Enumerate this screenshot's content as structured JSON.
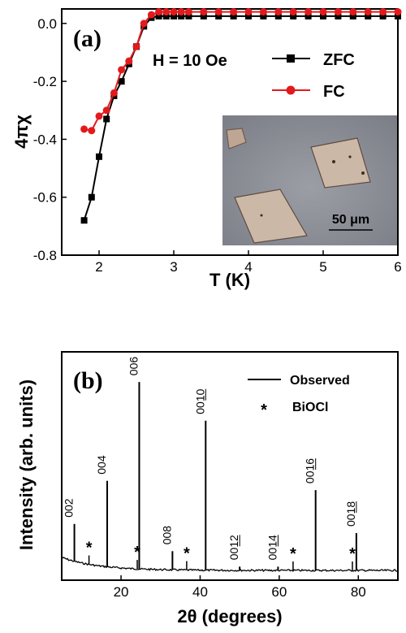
{
  "chart_data": [
    {
      "panel": "(a)",
      "type": "line",
      "xlabel": "T (K)",
      "ylabel": "4πχ",
      "xlim": [
        1.5,
        6
      ],
      "ylim": [
        -0.8,
        0.05
      ],
      "xticks": [
        "2",
        "3",
        "4",
        "5",
        "6"
      ],
      "yticks": [
        "0.0",
        "-0.2",
        "-0.4",
        "-0.6",
        "-0.8"
      ],
      "annotation": "H = 10 Oe",
      "inset_scale_label": "50 μm",
      "series": [
        {
          "name": "ZFC",
          "color": "#000000",
          "marker": "square",
          "x": [
            1.8,
            1.9,
            2.0,
            2.1,
            2.2,
            2.3,
            2.4,
            2.5,
            2.6,
            2.7,
            2.8,
            2.9,
            3.0,
            3.1,
            3.2,
            3.4,
            3.6,
            3.8,
            4.0,
            4.2,
            4.4,
            4.6,
            4.8,
            5.0,
            5.2,
            5.4,
            5.6,
            5.8,
            6.0
          ],
          "y": [
            -0.68,
            -0.6,
            -0.46,
            -0.33,
            -0.25,
            -0.2,
            -0.14,
            -0.08,
            -0.01,
            0.02,
            0.025,
            0.025,
            0.025,
            0.025,
            0.025,
            0.025,
            0.025,
            0.025,
            0.025,
            0.025,
            0.025,
            0.025,
            0.025,
            0.025,
            0.025,
            0.025,
            0.025,
            0.025,
            0.025
          ]
        },
        {
          "name": "FC",
          "color": "#e31a1c",
          "marker": "circle",
          "x": [
            1.8,
            1.9,
            2.0,
            2.1,
            2.2,
            2.3,
            2.4,
            2.5,
            2.6,
            2.7,
            2.8,
            2.9,
            3.0,
            3.1,
            3.2,
            3.4,
            3.6,
            3.8,
            4.0,
            4.2,
            4.4,
            4.6,
            4.8,
            5.0,
            5.2,
            5.4,
            5.6,
            5.8,
            6.0
          ],
          "y": [
            -0.365,
            -0.37,
            -0.32,
            -0.3,
            -0.24,
            -0.16,
            -0.13,
            -0.08,
            0.0,
            0.03,
            0.04,
            0.04,
            0.04,
            0.04,
            0.04,
            0.04,
            0.04,
            0.04,
            0.04,
            0.04,
            0.04,
            0.04,
            0.04,
            0.04,
            0.04,
            0.04,
            0.04,
            0.04,
            0.04
          ]
        }
      ]
    },
    {
      "panel": "(b)",
      "type": "line",
      "xlabel": "2θ (degrees)",
      "ylabel": "Intensity (arb. units)",
      "xlim": [
        5,
        90
      ],
      "xticks": [
        "20",
        "40",
        "60",
        "80"
      ],
      "series": [
        {
          "name": "Observed",
          "color": "#000000"
        },
        {
          "name": "BiOCl",
          "marker": "*"
        }
      ],
      "peaks": [
        {
          "pos": 8.2,
          "height": 0.2,
          "label": "002"
        },
        {
          "pos": 16.5,
          "height": 0.46,
          "label": "004"
        },
        {
          "pos": 24.6,
          "height": 1.0,
          "label": "006"
        },
        {
          "pos": 33.0,
          "height": 0.1,
          "label": "008"
        },
        {
          "pos": 41.4,
          "height": 0.8,
          "label": "0010"
        },
        {
          "pos": 50.0,
          "height": 0.02,
          "label": "0012"
        },
        {
          "pos": 59.7,
          "height": 0.02,
          "label": "0014"
        },
        {
          "pos": 69.2,
          "height": 0.43,
          "label": "0016"
        },
        {
          "pos": 79.5,
          "height": 0.2,
          "label": "0018"
        }
      ],
      "impurity_peaks": [
        11.9,
        24.1,
        36.6,
        63.5,
        78.5
      ],
      "impurity_label": "*"
    }
  ]
}
